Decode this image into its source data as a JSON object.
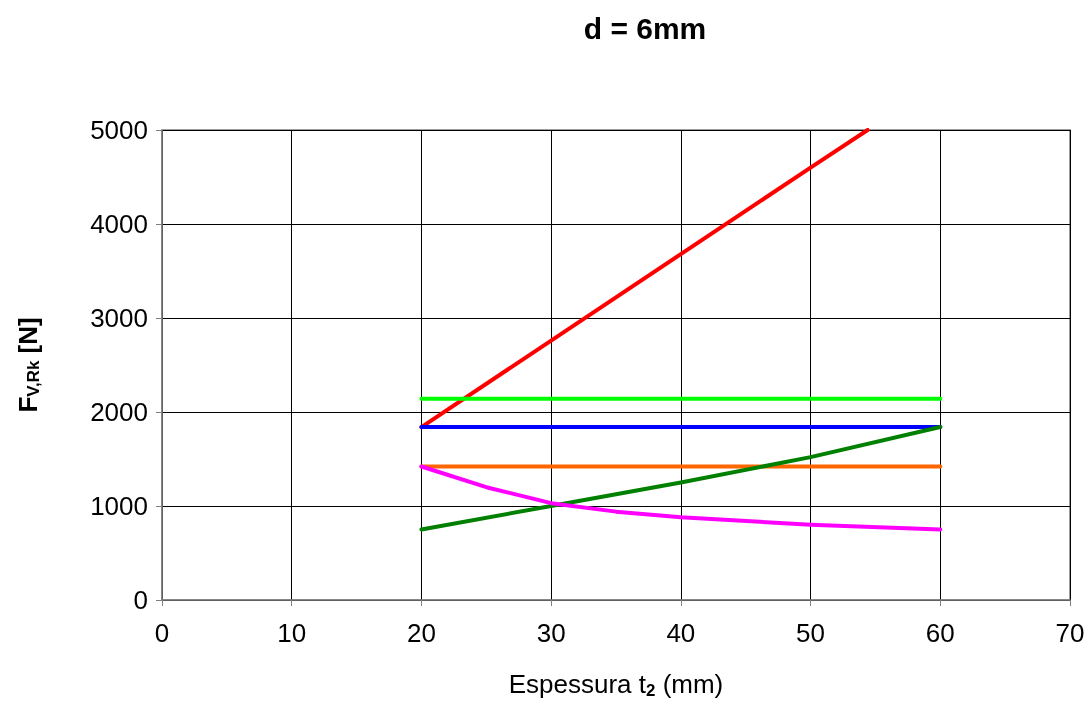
{
  "chart_data": {
    "type": "line",
    "title": "d = 6mm",
    "xlabel": "Espessura t$_{2}$ (mm)",
    "ylabel": "F$_{V,Rk}$ [N]",
    "xlim": [
      0,
      70
    ],
    "xticks": [
      0,
      10,
      20,
      30,
      40,
      50,
      60,
      70
    ],
    "ylim": [
      0,
      5000
    ],
    "yticks": [
      0,
      1000,
      2000,
      3000,
      4000,
      5000
    ],
    "grid": true,
    "marker": "none",
    "line_style": "solid",
    "series": [
      {
        "color": "#ff0000",
        "x": [
          20,
          30,
          40,
          50,
          54.4
        ],
        "values": [
          1840,
          2760,
          3680,
          4600,
          5000
        ]
      },
      {
        "color": "#00ff00",
        "x": [
          20,
          60
        ],
        "values": [
          2140,
          2140
        ]
      },
      {
        "color": "#0000ff",
        "x": [
          20,
          60
        ],
        "values": [
          1840,
          1840
        ]
      },
      {
        "color": "#ff6600",
        "x": [
          20,
          60
        ],
        "values": [
          1420,
          1420
        ]
      },
      {
        "color": "#008000",
        "x": [
          20,
          30,
          40,
          50,
          60
        ],
        "values": [
          750,
          1000,
          1250,
          1520,
          1840
        ]
      },
      {
        "color": "#ff00ff",
        "x": [
          20,
          25,
          30,
          35,
          40,
          50,
          60
        ],
        "values": [
          1420,
          1200,
          1030,
          940,
          880,
          800,
          750
        ]
      }
    ]
  }
}
